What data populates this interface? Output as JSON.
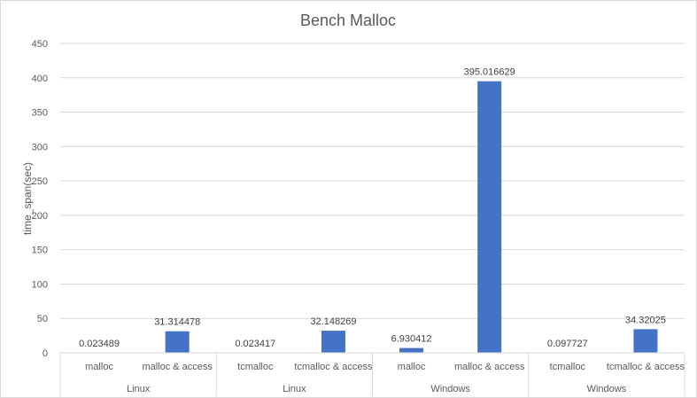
{
  "chart_data": {
    "type": "bar",
    "title": "Bench Malloc",
    "xlabel": "",
    "ylabel": "time_span(sec)",
    "ylim": [
      0,
      450
    ],
    "yticks": [
      0,
      50,
      100,
      150,
      200,
      250,
      300,
      350,
      400,
      450
    ],
    "grid": true,
    "legend": "none",
    "bar_color": "#4472c4",
    "groups": [
      "Linux",
      "Linux",
      "Windows",
      "Windows"
    ],
    "categories": [
      "malloc",
      "malloc & access",
      "tcmalloc",
      "tcmalloc & access",
      "malloc",
      "malloc & access",
      "tcmalloc",
      "tcmalloc & access"
    ],
    "values": [
      0.023489,
      31.314478,
      0.023417,
      32.148269,
      6.930412,
      395.016629,
      0.097727,
      34.32025
    ],
    "data_labels": [
      "0.023489",
      "31.314478",
      "0.023417",
      "32.148269",
      "6.930412",
      "395.016629",
      "0.097727",
      "34.32025"
    ]
  }
}
